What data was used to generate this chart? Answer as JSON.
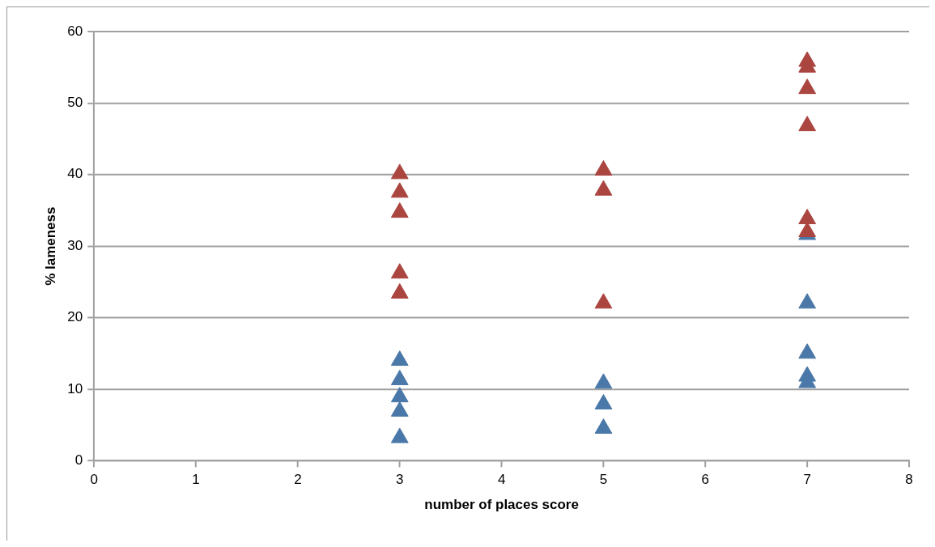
{
  "chart_data": {
    "type": "scatter",
    "xlabel": "number of places score",
    "ylabel": "% lameness",
    "xlim": [
      0,
      8
    ],
    "xticks": [
      0,
      1,
      2,
      3,
      4,
      5,
      6,
      7,
      8
    ],
    "ylim": [
      0,
      60
    ],
    "yticks": [
      0,
      10,
      20,
      30,
      40,
      50,
      60
    ],
    "grid": "y",
    "legend": false,
    "marker": "triangle",
    "series": [
      {
        "color": "#4a78a8",
        "x": [
          3,
          3,
          3,
          3,
          3,
          5,
          5,
          5,
          7,
          7,
          7,
          7,
          7
        ],
        "values": [
          14,
          11.3,
          8.9,
          6.9,
          3.2,
          10.8,
          7.9,
          4.5,
          31.6,
          22,
          15,
          11.8,
          10.9
        ]
      },
      {
        "color": "#ab4540",
        "x": [
          3,
          3,
          3,
          3,
          3,
          5,
          5,
          5,
          7,
          7,
          7,
          7,
          7,
          7
        ],
        "values": [
          40.1,
          37.5,
          34.7,
          26.2,
          23.4,
          40.6,
          37.8,
          22,
          55.8,
          55,
          52,
          46.8,
          33.8,
          32
        ]
      }
    ]
  }
}
